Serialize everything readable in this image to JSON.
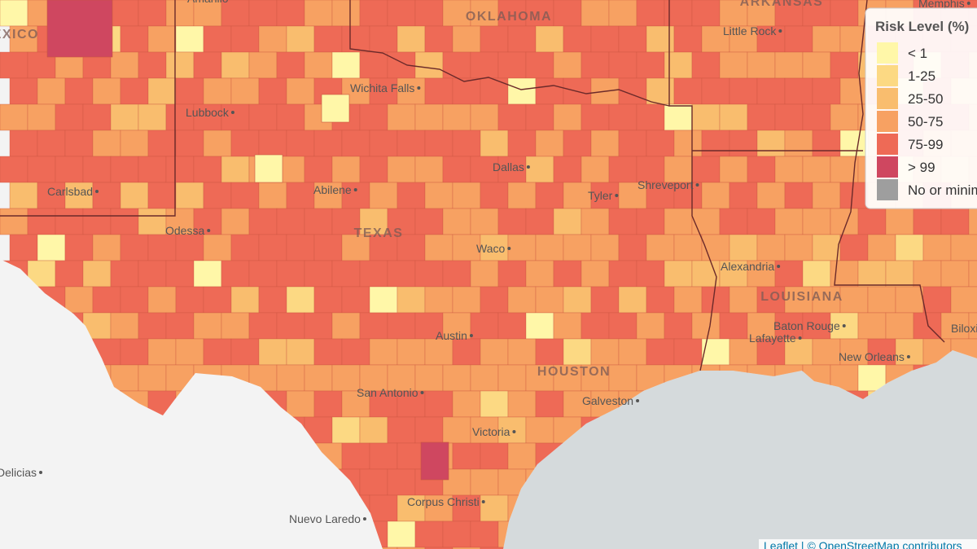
{
  "map": {
    "labels": [
      {
        "text": "NEW MEXICO",
        "kind": "state"
      },
      {
        "text": "OKLAHOMA",
        "kind": "state"
      },
      {
        "text": "ARKANSAS",
        "kind": "state"
      },
      {
        "text": "Little Rock",
        "kind": "city"
      },
      {
        "text": "Memphis",
        "kind": "city"
      },
      {
        "text": "Amarillo",
        "kind": "city"
      },
      {
        "text": "Wichita Falls",
        "kind": "city"
      },
      {
        "text": "Lubbock",
        "kind": "city"
      },
      {
        "text": "Carlsbad",
        "kind": "city"
      },
      {
        "text": "Abilene",
        "kind": "city"
      },
      {
        "text": "Dallas",
        "kind": "city"
      },
      {
        "text": "Tyler",
        "kind": "city"
      },
      {
        "text": "Shreveport",
        "kind": "city"
      },
      {
        "text": "Odessa",
        "kind": "city"
      },
      {
        "text": "TEXAS",
        "kind": "state"
      },
      {
        "text": "Waco",
        "kind": "city"
      },
      {
        "text": "Alexandria",
        "kind": "city"
      },
      {
        "text": "LOUISIANA",
        "kind": "state"
      },
      {
        "text": "Austin",
        "kind": "city"
      },
      {
        "text": "Baton Rouge",
        "kind": "city"
      },
      {
        "text": "Lafayette",
        "kind": "city"
      },
      {
        "text": "HOUSTON",
        "kind": "state"
      },
      {
        "text": "New Orleans",
        "kind": "city"
      },
      {
        "text": "San Antonio",
        "kind": "city"
      },
      {
        "text": "Galveston",
        "kind": "city"
      },
      {
        "text": "Victoria",
        "kind": "city"
      },
      {
        "text": "Corpus Christi",
        "kind": "city"
      },
      {
        "text": "Nuevo Laredo",
        "kind": "city"
      },
      {
        "text": "Delicias",
        "kind": "city"
      },
      {
        "text": "Biloxi",
        "kind": "city"
      }
    ],
    "legend": {
      "title": "Risk Level (%)",
      "items": [
        {
          "label": "< 1",
          "color": "#fff7a8"
        },
        {
          "label": "1-25",
          "color": "#fcd983"
        },
        {
          "label": "25-50",
          "color": "#f9bd6e"
        },
        {
          "label": "50-75",
          "color": "#f7a162"
        },
        {
          "label": "75-99",
          "color": "#ee6a56"
        },
        {
          "label": "> 99",
          "color": "#cf4760"
        },
        {
          "label": "No or minimal data",
          "color": "#9e9e9e"
        }
      ]
    },
    "attribution": "Leaflet | © OpenStreetMap contributors"
  }
}
